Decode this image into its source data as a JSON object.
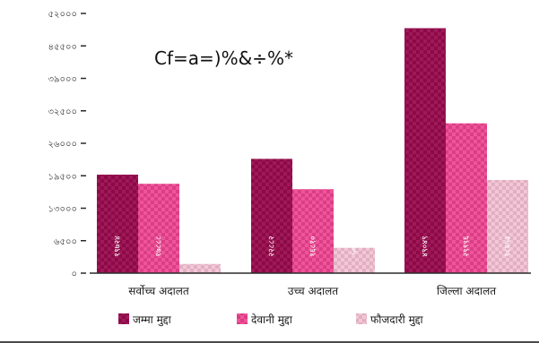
{
  "chart_data": {
    "type": "bar",
    "title": "Cf=a=)%&÷%*",
    "xlabel": "",
    "ylabel": "",
    "ylim": [
      0,
      52000
    ],
    "yticks": [
      0,
      6500,
      13000,
      19500,
      26000,
      32500,
      39000,
      45500,
      52000
    ],
    "ytick_labels": [
      "০",
      "৬৫০০",
      "১৩০০০",
      "১৯৫০০",
      "২৬০০০",
      "৩২৫০০",
      "৩৯০০০",
      "৪৫৫০০",
      "৫২০০০"
    ],
    "categories": [
      "सर्वोच्च अदालत",
      "उच्च अदालत",
      "जिल्ला अदालत"
    ],
    "series": [
      {
        "name": "जम्मा मुद्दा",
        "color": "#a0185a",
        "values": [
          19724,
          22882,
          49049
        ],
        "labels": [
          "१९७२४",
          "२२८८२",
          "४९०४९"
        ]
      },
      {
        "name": "देवानी मुद्दा",
        "color": "#f0549a",
        "values": [
          17888,
          16810,
          29996
        ],
        "labels": [
          "१७८८८",
          "१६८१०",
          "२९९९६"
        ]
      },
      {
        "name": "फौजदारी मुद्दा",
        "color": "#f4c6d6",
        "values": [
          1836,
          5072,
          18653
        ],
        "labels": [
          "१८३६",
          "५०७२",
          "१८६५३"
        ]
      }
    ],
    "grid": false,
    "legend": "bottom"
  }
}
